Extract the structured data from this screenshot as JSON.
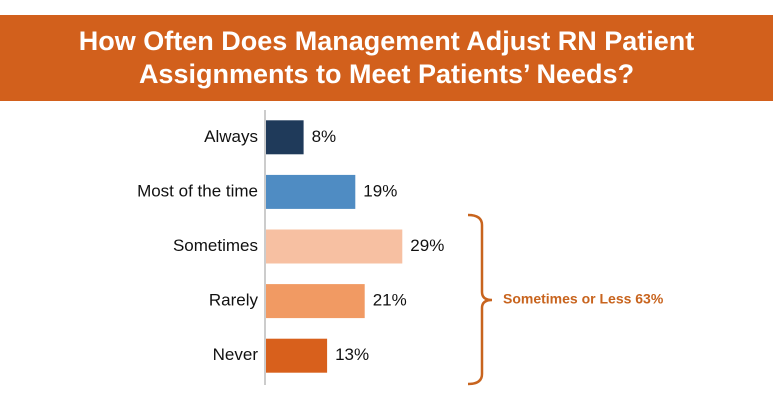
{
  "chart_data": {
    "type": "bar",
    "orientation": "horizontal",
    "title": "How Often Does Management Adjust RN Patient Assignments to Meet Patients’ Needs?",
    "categories": [
      "Always",
      "Most of the time",
      "Sometimes",
      "Rarely",
      "Never"
    ],
    "values": [
      8,
      19,
      29,
      21,
      13
    ],
    "value_labels": [
      "8%",
      "19%",
      "29%",
      "21%",
      "13%"
    ],
    "colors": [
      "#1f3a5a",
      "#4f8cc3",
      "#f7c0a2",
      "#f19a63",
      "#d8601c"
    ],
    "annotation": "Sometimes or Less 63%"
  }
}
